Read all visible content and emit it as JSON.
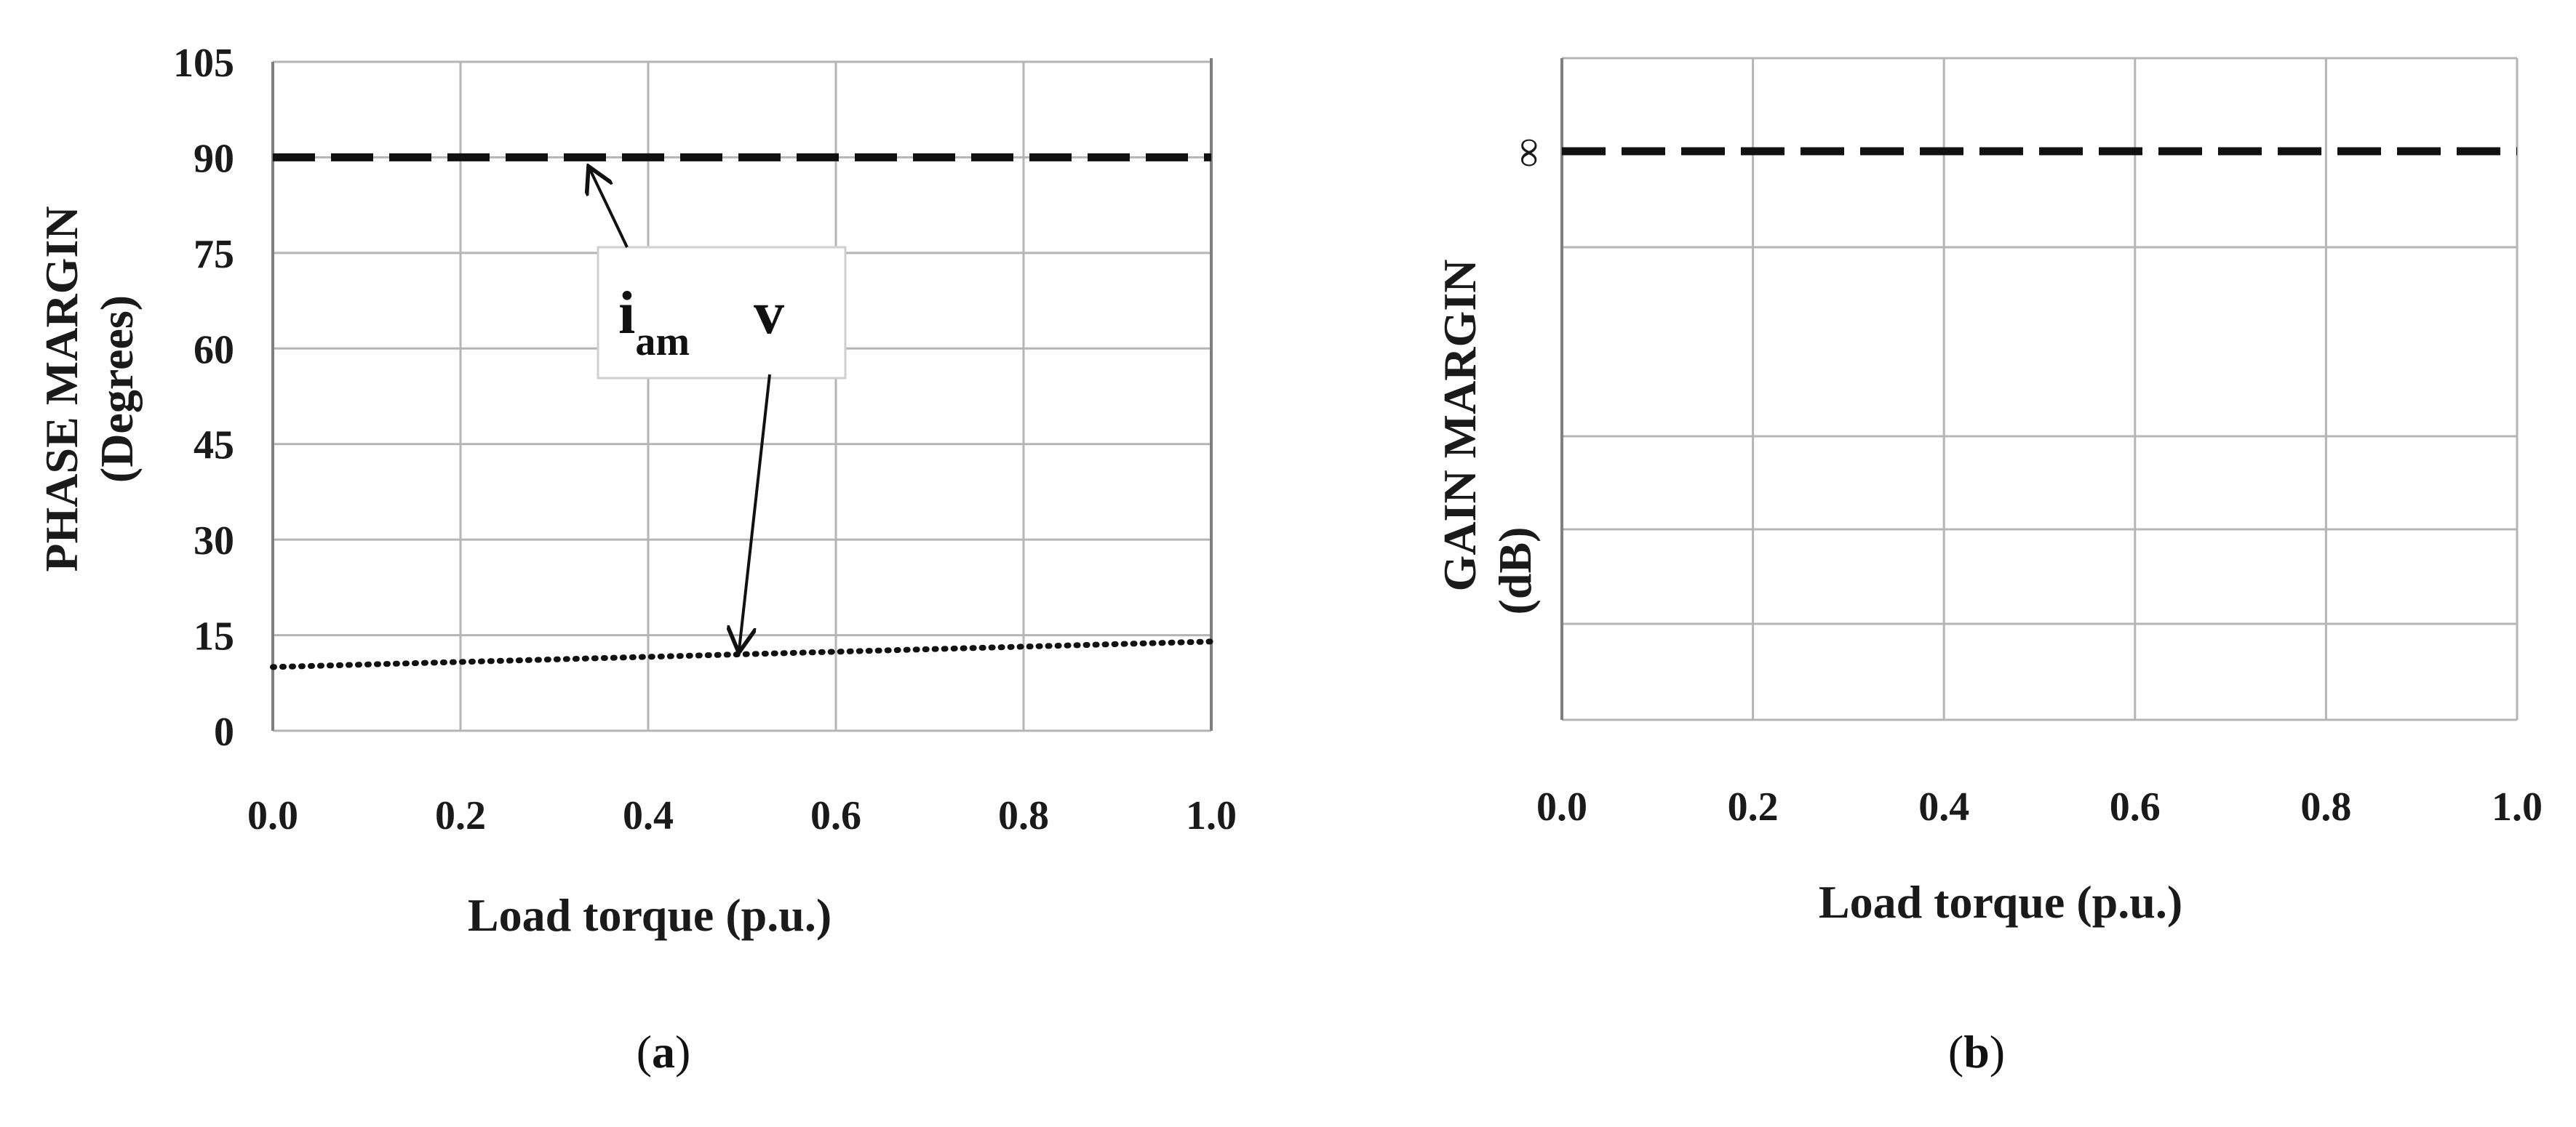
{
  "chart_data": [
    {
      "type": "line",
      "panel": "(a)",
      "panel_letter": "a",
      "xlabel": "Load torque (p.u.)",
      "ylabel_line1": "PHASE  MARGIN",
      "ylabel_line2": "(Degrees)",
      "xlim": [
        0,
        1
      ],
      "ylim": [
        0,
        105
      ],
      "x_ticks": [
        "0.0",
        "0.2",
        "0.4",
        "0.6",
        "0.8",
        "1.0"
      ],
      "y_ticks": [
        "105",
        "90",
        "75",
        "60",
        "45",
        "30",
        "15",
        "0"
      ],
      "grid": true,
      "series": [
        {
          "name": "i_am",
          "style": "dashed",
          "x": [
            0,
            1
          ],
          "y": [
            90,
            90
          ]
        },
        {
          "name": "v",
          "style": "dotted",
          "x": [
            0,
            1
          ],
          "y": [
            10,
            14
          ]
        }
      ],
      "legend": {
        "items": [
          {
            "main": "i",
            "sub": "am",
            "arrow_target": {
              "x": 0.33,
              "y": 90
            }
          },
          {
            "main": "v",
            "sub": "",
            "arrow_target": {
              "x": 0.5,
              "y": 12
            }
          }
        ]
      }
    },
    {
      "type": "line",
      "panel": "(b)",
      "panel_letter": "b",
      "xlabel": "Load torque (p.u.)",
      "ylabel_line1": "GAIN  MARGIN",
      "ylabel_line2": "(dB)",
      "xlim": [
        0,
        1
      ],
      "x_ticks": [
        "0.0",
        "0.2",
        "0.4",
        "0.6",
        "0.8",
        "1.0"
      ],
      "y_tick_label": "∞",
      "grid": true,
      "series": [
        {
          "name": "",
          "style": "dashed",
          "x": [
            0,
            1
          ],
          "y": [
            "∞",
            "∞"
          ]
        }
      ]
    }
  ],
  "colors": {
    "line": "#111111",
    "grid": "#b5b5b5",
    "axis": "#7f7f7f"
  }
}
